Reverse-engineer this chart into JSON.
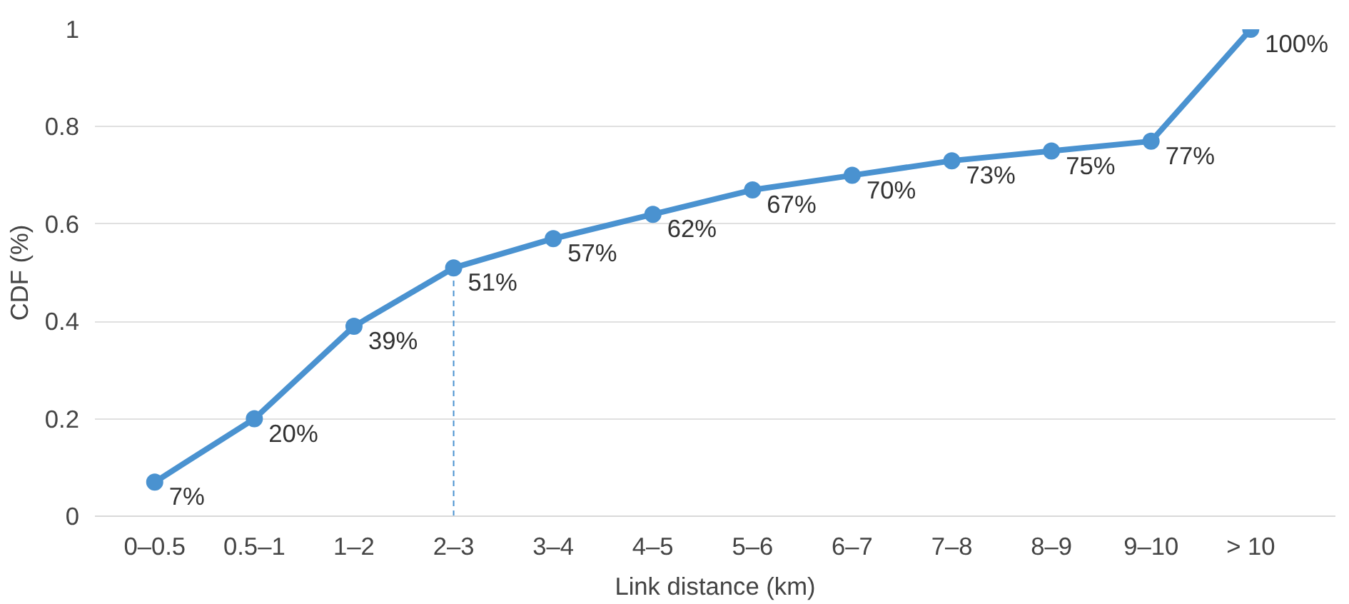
{
  "chart_data": {
    "type": "line",
    "xlabel": "Link distance (km)",
    "ylabel": "CDF (%)",
    "categories": [
      "0–0.5",
      "0.5–1",
      "1–2",
      "2–3",
      "3–4",
      "4–5",
      "5–6",
      "6–7",
      "7–8",
      "8–9",
      "9–10",
      "> 10"
    ],
    "series": [
      {
        "color": "#4a92d0",
        "values": [
          0.07,
          0.2,
          0.39,
          0.51,
          0.57,
          0.62,
          0.67,
          0.7,
          0.73,
          0.75,
          0.77,
          1.0
        ],
        "value_labels": [
          "7%",
          "20%",
          "39%",
          "51%",
          "57%",
          "62%",
          "67%",
          "70%",
          "73%",
          "75%",
          "77%",
          "100%"
        ]
      }
    ],
    "ylim": [
      0,
      1
    ],
    "yticks": [
      0,
      0.2,
      0.4,
      0.6,
      0.8,
      1
    ],
    "grid": "y",
    "marker": "circle",
    "line_style": "solid",
    "ref_lines": [
      {
        "axis": "x",
        "value": "2–3",
        "line_style": "dashed",
        "color": "#4a92d0"
      }
    ]
  }
}
